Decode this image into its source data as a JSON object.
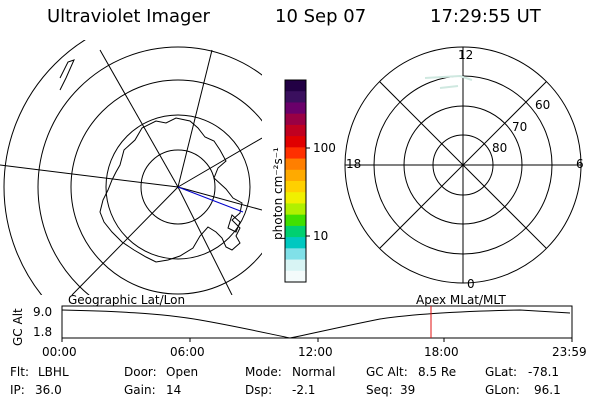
{
  "header": {
    "instrument": "Ultraviolet Imager",
    "date": "10 Sep 07",
    "time": "17:29:55 UT"
  },
  "colorbar": {
    "label": "photon cm⁻²s⁻¹",
    "ticks": [
      "100",
      "10"
    ],
    "colors": [
      "#220044",
      "#3a0f5e",
      "#6a006a",
      "#990044",
      "#c00020",
      "#e00000",
      "#ff3000",
      "#ff7f00",
      "#ffaa00",
      "#ffd000",
      "#f0f000",
      "#b0f000",
      "#40e000",
      "#00d070",
      "#00c8c0",
      "#80e0e8",
      "#d8f4f4",
      "#f4fbfb"
    ]
  },
  "geo_map": {
    "title": "Geographic Lat/Lon"
  },
  "polar_map": {
    "title": "Apex MLat/MLT",
    "mlt_labels": {
      "top": "12",
      "left": "18",
      "right": "6",
      "bottom": "0"
    },
    "lat_labels": [
      "60",
      "70",
      "80"
    ]
  },
  "altitude_plot": {
    "ylabel": "GC Alt",
    "yticks": [
      "9.0",
      "1.8"
    ],
    "xticks": [
      "00:00",
      "06:00",
      "12:00",
      "18:00",
      "23:59"
    ],
    "current_time_marker": "17:29:55",
    "accent_color": "#e01010"
  },
  "status": {
    "flt_label": "Flt:",
    "flt_value": "LBHL",
    "ip_label": "IP:",
    "ip_value": "36.0",
    "door_label": "Door:",
    "door_value": "Open",
    "gain_label": "Gain:",
    "gain_value": "14",
    "mode_label": "Mode:",
    "mode_value": "Normal",
    "dsp_label": "Dsp:",
    "dsp_value": "-2.1",
    "gcalt_label": "GC Alt:",
    "gcalt_value": "8.5 Re",
    "seq_label": "Seq:",
    "seq_value": "39",
    "glat_label": "GLat:",
    "glat_value": "-78.1",
    "glon_label": "GLon:",
    "glon_value": "96.1"
  }
}
